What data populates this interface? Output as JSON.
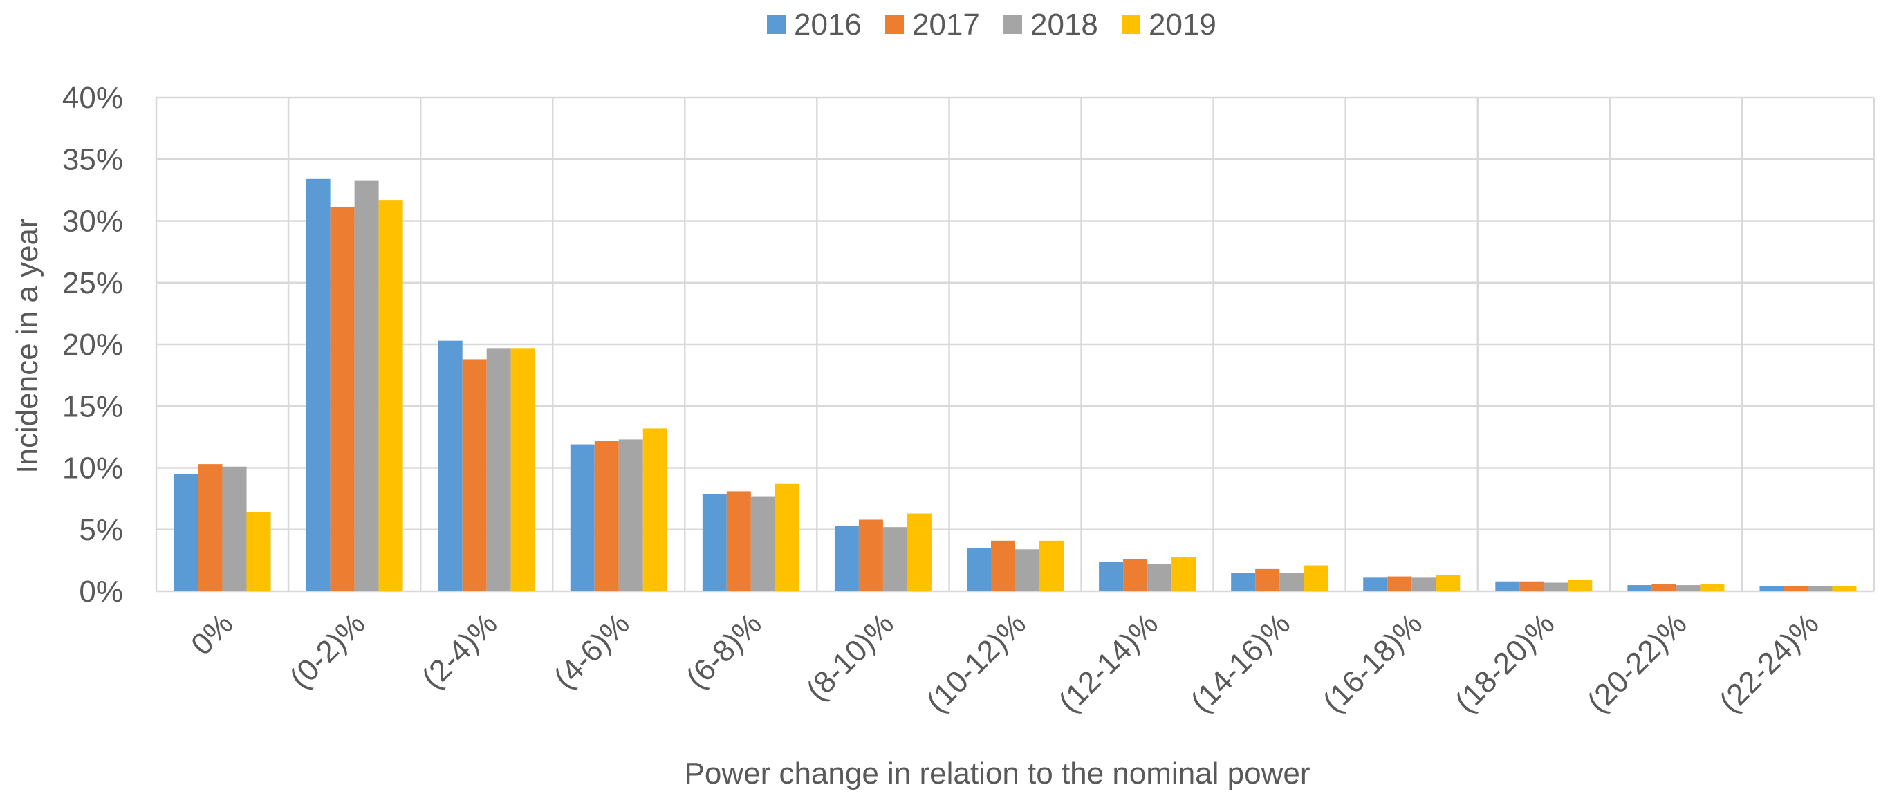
{
  "chart_data": {
    "type": "bar",
    "xlabel": "Power change in relation to the nominal power",
    "ylabel": "Incidence in a year",
    "ylim": [
      0,
      40
    ],
    "y_ticks": [
      "0%",
      "5%",
      "10%",
      "15%",
      "20%",
      "25%",
      "30%",
      "35%",
      "40%"
    ],
    "grid": true,
    "legend_position": "top-center",
    "categories": [
      "0%",
      "(0-2)%",
      "(2-4)%",
      "(4-6)%",
      "(6-8)%",
      "(8-10)%",
      "(10-12)%",
      "(12-14)%",
      "(14-16)%",
      "(16-18)%",
      "(18-20)%",
      "(20-22)%",
      "(22-24)%"
    ],
    "series": [
      {
        "name": "2016",
        "color": "#5B9BD5",
        "values": [
          9.5,
          33.4,
          20.3,
          11.9,
          7.9,
          5.3,
          3.5,
          2.4,
          1.5,
          1.1,
          0.8,
          0.5,
          0.4
        ]
      },
      {
        "name": "2017",
        "color": "#ED7D31",
        "values": [
          10.3,
          31.1,
          18.8,
          12.2,
          8.1,
          5.8,
          4.1,
          2.6,
          1.8,
          1.2,
          0.8,
          0.6,
          0.4
        ]
      },
      {
        "name": "2018",
        "color": "#A5A5A5",
        "values": [
          10.1,
          33.3,
          19.7,
          12.3,
          7.7,
          5.2,
          3.4,
          2.2,
          1.5,
          1.1,
          0.7,
          0.5,
          0.4
        ]
      },
      {
        "name": "2019",
        "color": "#FFC000",
        "values": [
          6.4,
          31.7,
          19.7,
          13.2,
          8.7,
          6.3,
          4.1,
          2.8,
          2.1,
          1.3,
          0.9,
          0.6,
          0.4
        ]
      }
    ]
  }
}
